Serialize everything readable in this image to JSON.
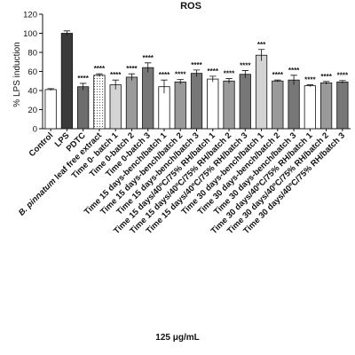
{
  "chart_data": {
    "type": "bar",
    "title": "ROS",
    "ylabel": "% LPS induction",
    "xlabel": "125 μg/mL",
    "ylim": [
      0,
      120
    ],
    "yticks": [
      0,
      20,
      40,
      60,
      80,
      100,
      120
    ],
    "grid": false,
    "legend": "none",
    "categories": [
      "Control",
      "LPS",
      "PDTC",
      "B. pinnatum leaf free extract",
      "Time 0- batch 1",
      "Time 0-batch 2",
      "Time 0-batch 3",
      "Time 15 days-bench/batch 1",
      "Time 15 days-bench/batch 2",
      "Time 15 days-bench/batch 3",
      "Time 15 days/40ºC/75% RH/batch 1",
      "Time 15 days/40ºC/75% RH/batch 2",
      "Time 15 days/40ºC/75% RH/batch 3",
      "Time 30 days-bench/batch 1",
      "Time 30 days-bench/batch 2",
      "Time 30 days-bench/batch 3",
      "Time 30 days/40ºC/75% RH/batch 1",
      "Time 30 days/40ºC/75% RH/batch 2",
      "Time 30 days/40ºC/75% RH/batch 3"
    ],
    "values": [
      41,
      100,
      44,
      56,
      46,
      54,
      64,
      44,
      49,
      58,
      52,
      50,
      57,
      77,
      50,
      51,
      45,
      48,
      49
    ],
    "errors": [
      1.0,
      2.5,
      3.5,
      1.5,
      5.0,
      3.5,
      5.0,
      7.0,
      2.5,
      3.5,
      3.0,
      2.5,
      4.0,
      6.0,
      1.0,
      5.0,
      1.0,
      1.5,
      1.5
    ],
    "significance": [
      "",
      "",
      "****",
      "****",
      "****",
      "****",
      "****",
      "****",
      "****",
      "****",
      "****",
      "****",
      "****",
      "***",
      "****",
      "****",
      "****",
      "****",
      "****"
    ],
    "fills": [
      "#ffffff",
      "#3a3a3a",
      "#6d6d6d",
      "#f5f5f5",
      "#d4d4d4",
      "#9a9a9a",
      "#777777",
      "#ffffff",
      "#9a9a9a",
      "#777777",
      "#ffffff",
      "#9a9a9a",
      "#777777",
      "#d4d4d4",
      "#9a9a9a",
      "#777777",
      "#ffffff",
      "#9a9a9a",
      "#777777"
    ],
    "patterns": [
      "none",
      "none",
      "none",
      "dots",
      "none",
      "none",
      "none",
      "none",
      "none",
      "none",
      "none",
      "none",
      "none",
      "none",
      "none",
      "none",
      "none",
      "none",
      "none"
    ]
  }
}
